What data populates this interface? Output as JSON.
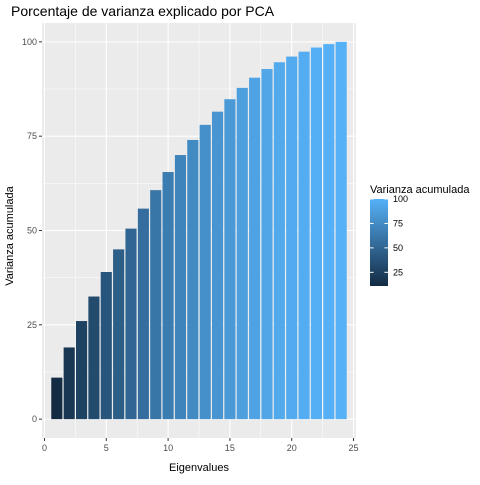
{
  "chart_data": {
    "type": "bar",
    "title": "Porcentaje de varianza explicado por PCA",
    "xlabel": "Eigenvalues",
    "ylabel": "Varianza acumulada",
    "x": [
      1,
      2,
      3,
      4,
      5,
      6,
      7,
      8,
      9,
      10,
      11,
      12,
      13,
      14,
      15,
      16,
      17,
      18,
      19,
      20,
      21,
      22,
      23,
      24
    ],
    "values": [
      11,
      19,
      26,
      32.5,
      39,
      45,
      50.5,
      55.8,
      60.7,
      65.5,
      70,
      74,
      78,
      81.5,
      84.8,
      87.8,
      90.5,
      92.8,
      94.6,
      96.1,
      97.4,
      98.5,
      99.4,
      100
    ],
    "xlim": [
      -0.2,
      25.2
    ],
    "ylim": [
      -5,
      105
    ],
    "x_ticks": [
      "0",
      "5",
      "10",
      "15",
      "20",
      "25"
    ],
    "x_tick_values": [
      0,
      5,
      10,
      15,
      20,
      25
    ],
    "y_ticks": [
      "0",
      "25",
      "50",
      "75",
      "100"
    ],
    "y_tick_values": [
      0,
      25,
      50,
      75,
      100
    ],
    "grid": true,
    "fill_scale": {
      "low": "#132B43",
      "high": "#56B1F7",
      "min": 11,
      "max": 100
    },
    "legend": {
      "title": "Varianza acumulada",
      "position": "right",
      "labels": [
        "25",
        "50",
        "75",
        "100"
      ],
      "label_values": [
        25,
        50,
        75,
        100
      ]
    }
  }
}
